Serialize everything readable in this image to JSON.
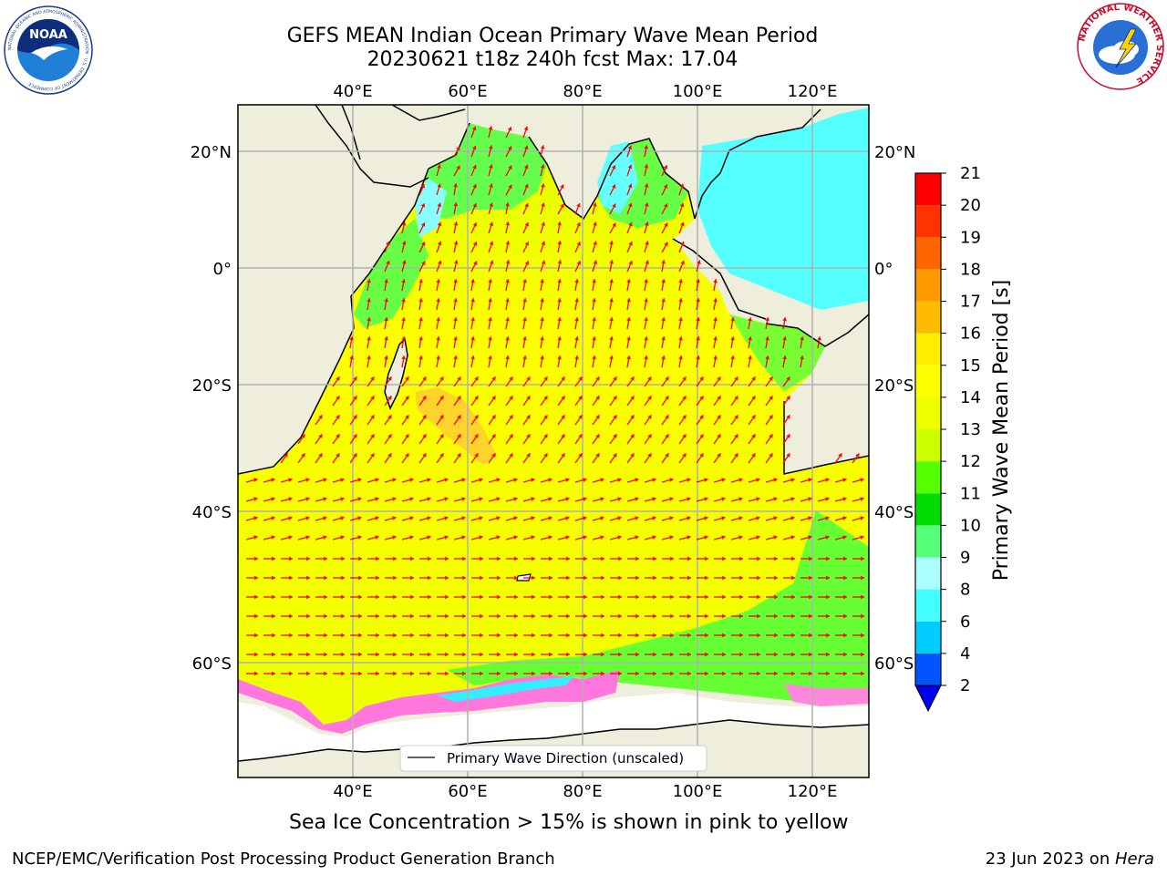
{
  "title": {
    "line1": "GEFS MEAN Indian Ocean Primary Wave Mean Period",
    "line2": "20230621 t18z 240h fcst   Max: 17.04"
  },
  "map": {
    "lon_ticks": [
      "40°E",
      "60°E",
      "80°E",
      "100°E",
      "120°E"
    ],
    "lat_ticks": [
      "20°N",
      "0°",
      "20°S",
      "40°S",
      "60°S"
    ],
    "legend_label": "Primary Wave Direction (unscaled)",
    "colors": {
      "land": "#efeedd",
      "ice_free_open_land": "#ffffff",
      "arrow": "#ff0000",
      "grid": "#b0b0b0"
    }
  },
  "colorbar": {
    "label": "Primary Wave Mean Period [s]",
    "ticks": [
      "2",
      "4",
      "6",
      "8",
      "9",
      "10",
      "11",
      "12",
      "13",
      "14",
      "15",
      "16",
      "17",
      "18",
      "19",
      "20",
      "21"
    ],
    "colors": [
      "#0055ff",
      "#00ccff",
      "#44ffff",
      "#aaffff",
      "#55ff77",
      "#00dd00",
      "#55ff00",
      "#ccff00",
      "#eeff00",
      "#ffff00",
      "#ffee00",
      "#ffbb00",
      "#ff9900",
      "#ff6600",
      "#ff3300",
      "#ff0000"
    ],
    "extend_color": "#0000ee"
  },
  "caption": "Sea Ice Concentration > 15% is shown in pink to yellow",
  "footer": {
    "left": "NCEP/EMC/Verification Post Processing Product Generation Branch",
    "right_date": "23 Jun 2023 on ",
    "right_host": "Hera"
  },
  "logos": {
    "noaa": "NOAA",
    "noaa_ring": "NATIONAL OCEANIC AND ATMOSPHERIC ADMINISTRATION · U.S. DEPARTMENT OF COMMERCE",
    "nws": "NATIONAL WEATHER SERVICE"
  }
}
